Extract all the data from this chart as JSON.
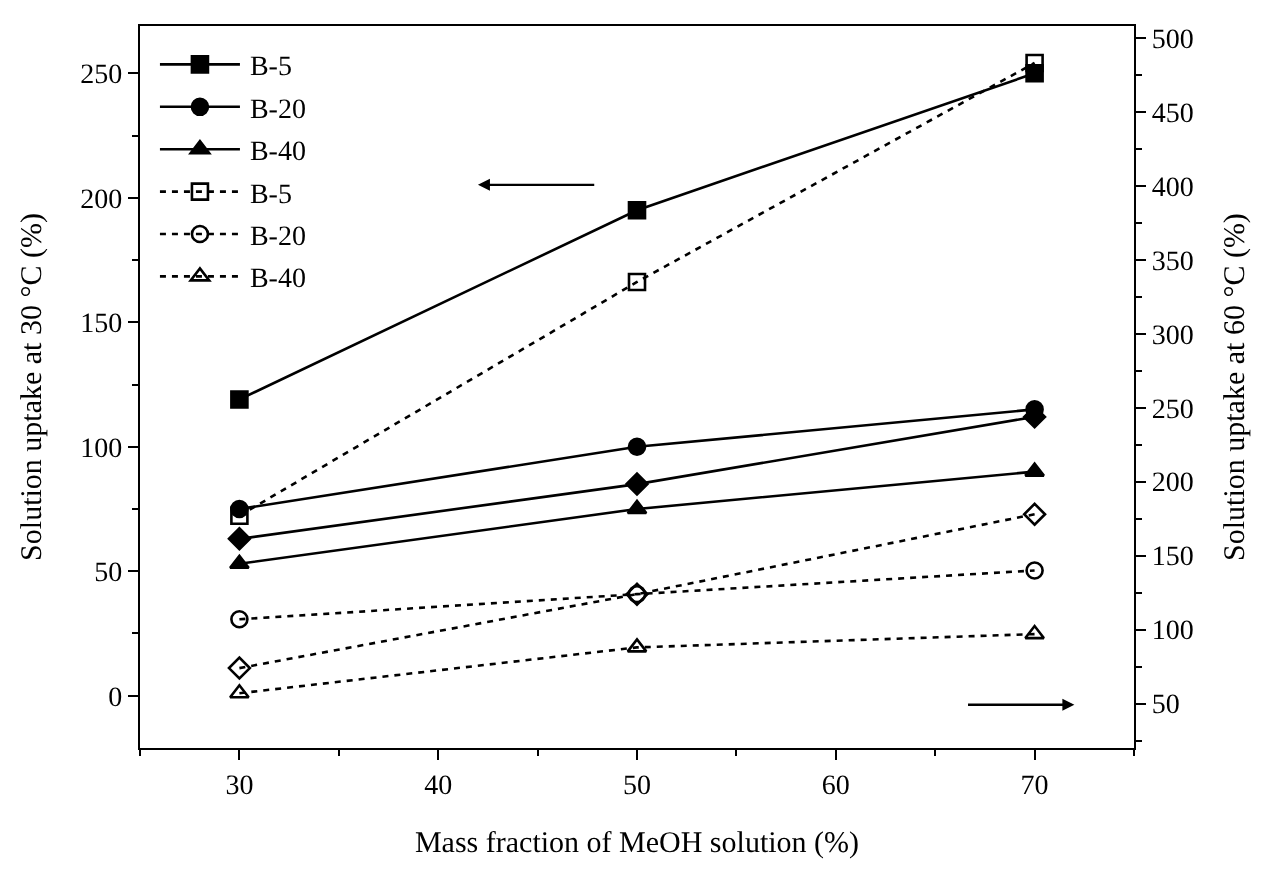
{
  "chart_data": {
    "type": "line",
    "xlabel": "Mass fraction of MeOH solution (%)",
    "ylabel": "Solution uptake at 30 °C (%)",
    "y2label": "Solution uptake at 60 °C (%)",
    "x": [
      30,
      50,
      70
    ],
    "xlim": [
      25,
      75
    ],
    "xticks": [
      30,
      40,
      50,
      60,
      70
    ],
    "ylim": [
      -21,
      269
    ],
    "yticks": [
      0,
      50,
      100,
      150,
      200,
      250
    ],
    "y2lim": [
      20,
      508
    ],
    "y2ticks": [
      50,
      100,
      150,
      200,
      250,
      300,
      350,
      400,
      450,
      500
    ],
    "legend": "top left",
    "series": [
      {
        "name": "B-5",
        "color": "#000000",
        "values": [
          119,
          195,
          250
        ],
        "marker": "square",
        "line_style": "solid"
      },
      {
        "name": "B-20",
        "color": "#000000",
        "values": [
          75,
          100,
          115
        ],
        "marker": "circle",
        "line_style": "solid"
      },
      {
        "name": "B-40",
        "color": "#000000",
        "values": [
          53,
          75,
          90
        ],
        "marker": "triangle",
        "line_style": "solid"
      },
      {
        "color": "#000000",
        "values": [
          63,
          85,
          112
        ],
        "marker": "diamond",
        "line_style": "solid"
      },
      {
        "name": "B-5",
        "color": "#000000",
        "values": [
          177,
          335,
          483
        ],
        "marker": "square",
        "line_style": "dotted",
        "axis": "y2"
      },
      {
        "name": "B-20",
        "color": "#000000",
        "values": [
          107,
          124,
          140
        ],
        "marker": "circle",
        "line_style": "dotted",
        "axis": "y2"
      },
      {
        "name": "B-40",
        "color": "#000000",
        "values": [
          57,
          88,
          97
        ],
        "marker": "triangle",
        "line_style": "dotted",
        "axis": "y2"
      },
      {
        "color": "#000000",
        "values": [
          74,
          124,
          178
        ],
        "marker": "diamond",
        "line_style": "dotted",
        "axis": "y2"
      }
    ]
  }
}
